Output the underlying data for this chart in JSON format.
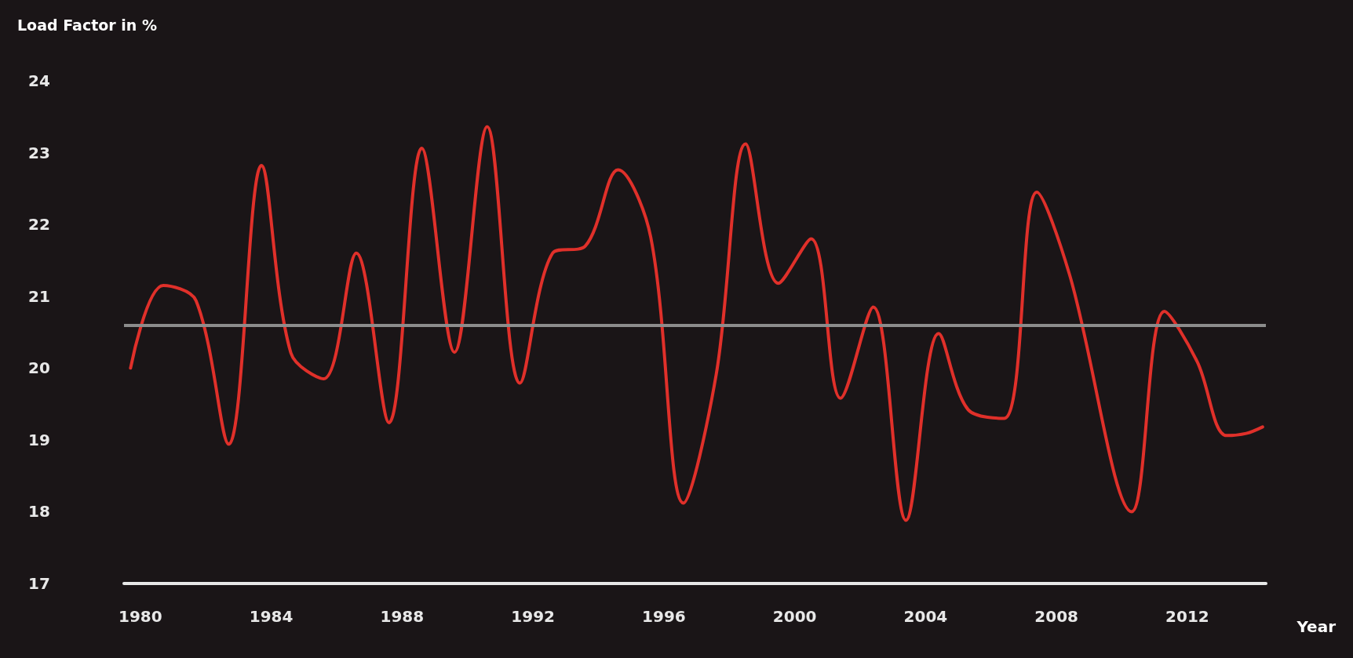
{
  "chart_data": {
    "type": "line",
    "ylabel": "Load Factor in %",
    "xlabel": "Year",
    "x": [
      1979.7,
      1980.7,
      1981.7,
      1982.7,
      1983.7,
      1984.6,
      1985.6,
      1986.6,
      1987.6,
      1988.6,
      1989.6,
      1990.6,
      1991.6,
      1992.6,
      1993.6,
      1994.6,
      1995.6,
      1996.6,
      1997.6,
      1998.5,
      1999.5,
      2000.5,
      2001.4,
      2002.4,
      2003.4,
      2004.4,
      2005.3,
      2006.4,
      2007.4,
      2008.4,
      2010.3,
      2011.3,
      2012.3,
      2013.2,
      2013.8,
      2014.3
    ],
    "series": [
      {
        "color": "#e0302a",
        "values": [
          20.0,
          21.15,
          20.94,
          18.94,
          22.82,
          20.21,
          19.85,
          21.6,
          19.24,
          23.06,
          20.22,
          23.36,
          19.79,
          21.6,
          21.7,
          22.76,
          21.82,
          18.12,
          19.91,
          23.12,
          21.18,
          21.8,
          19.58,
          20.85,
          17.88,
          20.48,
          19.42,
          19.3,
          22.45,
          21.3,
          18.0,
          20.79,
          20.09,
          19.06,
          19.09,
          19.18
        ]
      }
    ],
    "xlim": [
      1979.5,
      2014.4
    ],
    "xticks": [
      1980,
      1984,
      1988,
      1992,
      1996,
      2000,
      2004,
      2008,
      2012
    ],
    "ylim": [
      17,
      24
    ],
    "yticks": [
      17,
      18,
      19,
      20,
      21,
      22,
      23,
      24
    ],
    "ref_lines": [
      {
        "axis": "y",
        "value": 20.6,
        "color": "#8c8c8c"
      }
    ],
    "grid": false,
    "marker": "none",
    "line_style": "solid"
  }
}
